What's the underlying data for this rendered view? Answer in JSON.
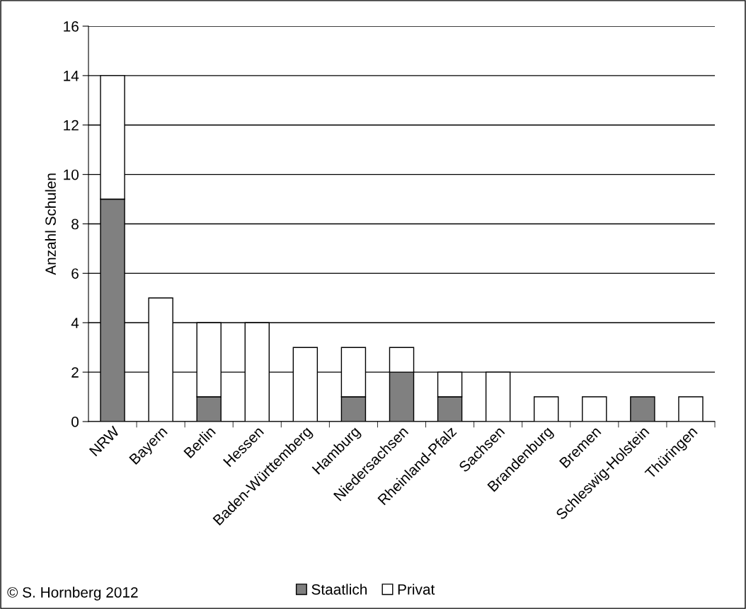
{
  "chart_data": {
    "type": "bar",
    "stacked": true,
    "ylabel": "Anzahl Schulen",
    "categories": [
      "NRW",
      "Bayern",
      "Berlin",
      "Hessen",
      "Baden-Württemberg",
      "Hamburg",
      "Niedersachsen",
      "Rheinland-Pfalz",
      "Sachsen",
      "Brandenburg",
      "Bremen",
      "Schleswig-Holstein",
      "Thüringen"
    ],
    "series": [
      {
        "name": "Staatlich",
        "color": "#808080",
        "values": [
          9,
          0,
          1,
          0,
          0,
          1,
          2,
          1,
          0,
          0,
          0,
          1,
          0
        ]
      },
      {
        "name": "Privat",
        "color": "#ffffff",
        "values": [
          5,
          5,
          3,
          4,
          3,
          2,
          1,
          1,
          2,
          1,
          1,
          0,
          1
        ]
      }
    ],
    "ylim": [
      0,
      16
    ],
    "yticks": [
      0,
      2,
      4,
      6,
      8,
      10,
      12,
      14,
      16
    ],
    "grid": "y",
    "legend": "bottom",
    "annotations": [
      "© S. Hornberg 2012"
    ]
  }
}
